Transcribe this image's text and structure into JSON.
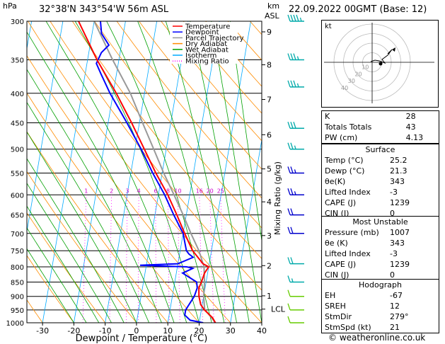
{
  "header": {
    "pressure_unit": "hPa",
    "location": "32°38'N  343°54'W  56m  ASL",
    "height_unit_km": "km",
    "height_unit_asl": "ASL",
    "datetime": "22.09.2022  00GMT  (Base: 12)"
  },
  "chart_data": {
    "type": "line",
    "xlabel": "Dewpoint / Temperature (°C)",
    "ylabel": "",
    "x_ticks": [
      -30,
      -20,
      -10,
      0,
      10,
      20,
      30,
      40
    ],
    "xlim": [
      -35,
      40
    ],
    "pressure_levels": [
      300,
      350,
      400,
      450,
      500,
      550,
      600,
      650,
      700,
      750,
      800,
      850,
      900,
      950,
      1000
    ],
    "height_km_ticks": [
      {
        "label": "9",
        "p": 313
      },
      {
        "label": "8",
        "p": 357
      },
      {
        "label": "7",
        "p": 410
      },
      {
        "label": "6",
        "p": 472
      },
      {
        "label": "5",
        "p": 541
      },
      {
        "label": "4",
        "p": 617
      },
      {
        "label": "3",
        "p": 706
      },
      {
        "label": "2",
        "p": 796
      },
      {
        "label": "1",
        "p": 898
      },
      {
        "label": "LCL",
        "p": 947
      }
    ],
    "mixing_ratio_label": "Mixing Ratio (g/kg)",
    "mixing_ratio_values": [
      "1",
      "2",
      "3",
      "4",
      "6",
      "8",
      "10",
      "16",
      "20",
      "25"
    ],
    "legend": [
      {
        "name": "Temperature",
        "color": "#ff0000"
      },
      {
        "name": "Dewpoint",
        "color": "#0000ff"
      },
      {
        "name": "Parcel Trajectory",
        "color": "#999999"
      },
      {
        "name": "Dry Adiabat",
        "color": "#ff8c00"
      },
      {
        "name": "Wet Adiabat",
        "color": "#00a000"
      },
      {
        "name": "Isotherm",
        "color": "#00aaff"
      },
      {
        "name": "Mixing Ratio",
        "color": "#ff00ff"
      }
    ],
    "series": [
      {
        "name": "Temperature",
        "color": "#ff0000",
        "points": [
          [
            1000,
            25.2
          ],
          [
            980,
            24
          ],
          [
            950,
            21
          ],
          [
            930,
            19.5
          ],
          [
            900,
            18.5
          ],
          [
            870,
            18
          ],
          [
            850,
            18.5
          ],
          [
            820,
            19
          ],
          [
            800,
            20
          ],
          [
            790,
            18
          ],
          [
            760,
            15
          ],
          [
            750,
            14
          ],
          [
            700,
            10.5
          ],
          [
            650,
            7
          ],
          [
            600,
            3
          ],
          [
            550,
            -2
          ],
          [
            500,
            -7
          ],
          [
            450,
            -12.5
          ],
          [
            400,
            -19
          ],
          [
            350,
            -27
          ],
          [
            300,
            -35
          ]
        ]
      },
      {
        "name": "Dewpoint",
        "color": "#0000ff",
        "points": [
          [
            1000,
            21.3
          ],
          [
            990,
            17
          ],
          [
            970,
            15
          ],
          [
            950,
            15
          ],
          [
            900,
            17
          ],
          [
            870,
            17.5
          ],
          [
            850,
            17
          ],
          [
            820,
            12
          ],
          [
            805,
            15
          ],
          [
            800,
            13
          ],
          [
            795,
            -2
          ],
          [
            790,
            10
          ],
          [
            770,
            14.5
          ],
          [
            760,
            13
          ],
          [
            750,
            12
          ],
          [
            700,
            10
          ],
          [
            650,
            6
          ],
          [
            600,
            2
          ],
          [
            550,
            -3
          ],
          [
            500,
            -8
          ],
          [
            450,
            -14
          ],
          [
            400,
            -21
          ],
          [
            370,
            -25
          ],
          [
            355,
            -27
          ],
          [
            340,
            -26
          ],
          [
            330,
            -24
          ],
          [
            315,
            -27
          ],
          [
            300,
            -28
          ]
        ]
      },
      {
        "name": "Parcel Trajectory",
        "color": "#999999",
        "points": [
          [
            1000,
            25.2
          ],
          [
            947,
            21
          ],
          [
            900,
            20
          ],
          [
            850,
            19.5
          ],
          [
            800,
            18.5
          ],
          [
            750,
            16
          ],
          [
            700,
            12.5
          ],
          [
            650,
            9
          ],
          [
            600,
            5
          ],
          [
            550,
            0.5
          ],
          [
            500,
            -4
          ],
          [
            450,
            -9
          ],
          [
            400,
            -14.5
          ],
          [
            350,
            -22
          ],
          [
            300,
            -30
          ]
        ]
      }
    ],
    "wind_barbs": [
      {
        "p": 300,
        "dir": 300,
        "spd": 45
      },
      {
        "p": 350,
        "dir": 295,
        "spd": 35
      },
      {
        "p": 390,
        "dir": 290,
        "spd": 35
      },
      {
        "p": 460,
        "dir": 285,
        "spd": 30
      },
      {
        "p": 500,
        "dir": 285,
        "spd": 25
      },
      {
        "p": 550,
        "dir": 280,
        "spd": 25
      },
      {
        "p": 600,
        "dir": 280,
        "spd": 25
      },
      {
        "p": 650,
        "dir": 285,
        "spd": 20
      },
      {
        "p": 700,
        "dir": 285,
        "spd": 20
      },
      {
        "p": 790,
        "dir": 280,
        "spd": 20
      },
      {
        "p": 850,
        "dir": 275,
        "spd": 15
      },
      {
        "p": 900,
        "dir": 270,
        "spd": 10
      },
      {
        "p": 950,
        "dir": 260,
        "spd": 10
      },
      {
        "p": 1000,
        "dir": 250,
        "spd": 10
      }
    ]
  },
  "hodograph": {
    "unit_label": "kt",
    "ring_labels": [
      "10",
      "20",
      "30",
      "40"
    ]
  },
  "indices": [
    {
      "label": "K",
      "value": "28"
    },
    {
      "label": "Totals Totals",
      "value": "43"
    },
    {
      "label": "PW (cm)",
      "value": "4.13"
    }
  ],
  "surface": {
    "title": "Surface",
    "rows": [
      {
        "label": "Temp (°C)",
        "value": "25.2"
      },
      {
        "label": "Dewp (°C)",
        "value": "21.3"
      },
      {
        "label": "θe(K)",
        "value": "343"
      },
      {
        "label": "Lifted Index",
        "value": "-3"
      },
      {
        "label": "CAPE (J)",
        "value": "1239"
      },
      {
        "label": "CIN (J)",
        "value": "0"
      }
    ]
  },
  "most_unstable": {
    "title": "Most Unstable",
    "rows": [
      {
        "label": "Pressure (mb)",
        "value": "1007"
      },
      {
        "label": "θe (K)",
        "value": "343"
      },
      {
        "label": "Lifted Index",
        "value": "-3"
      },
      {
        "label": "CAPE (J)",
        "value": "1239"
      },
      {
        "label": "CIN (J)",
        "value": "0"
      }
    ]
  },
  "hodograph_stats": {
    "title": "Hodograph",
    "rows": [
      {
        "label": "EH",
        "value": "-67"
      },
      {
        "label": "SREH",
        "value": "12"
      },
      {
        "label": "StmDir",
        "value": "279°"
      },
      {
        "label": "StmSpd (kt)",
        "value": "21"
      }
    ]
  },
  "footer": {
    "credit": "© weatheronline.co.uk"
  }
}
